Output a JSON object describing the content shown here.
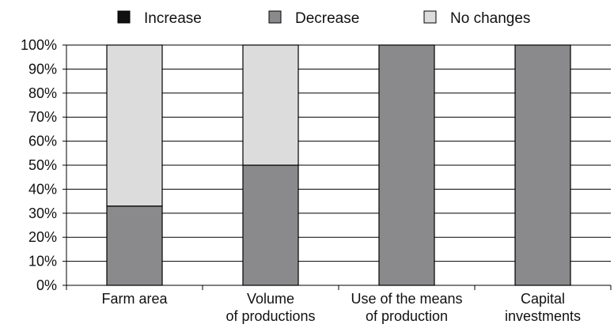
{
  "chart_data": {
    "type": "bar",
    "stacked": true,
    "title": "",
    "xlabel": "",
    "ylabel": "",
    "ylim": [
      0,
      100
    ],
    "y_ticks": [
      "0%",
      "10%",
      "20%",
      "30%",
      "40%",
      "50%",
      "60%",
      "70%",
      "80%",
      "90%",
      "100%"
    ],
    "categories": [
      [
        "Farm area"
      ],
      [
        "Volume",
        "of productions"
      ],
      [
        "Use of the means",
        "of production"
      ],
      [
        "Capital",
        "investments"
      ]
    ],
    "series": [
      {
        "name": "Increase",
        "color": "#111111",
        "values": [
          0,
          0,
          0,
          0
        ]
      },
      {
        "name": "Decrease",
        "color": "#8a8a8c",
        "values": [
          33,
          50,
          100,
          100
        ]
      },
      {
        "name": "No changes",
        "color": "#dcdcdc",
        "values": [
          67,
          50,
          0,
          0
        ]
      }
    ],
    "legend_position": "top",
    "grid": true
  }
}
